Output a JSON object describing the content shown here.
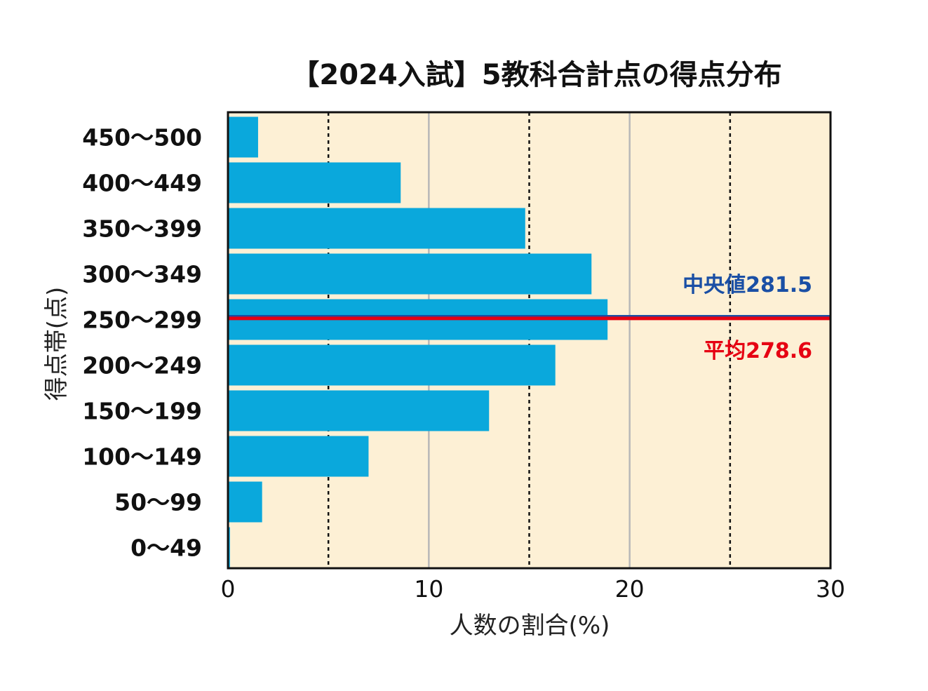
{
  "chart_data": {
    "type": "bar",
    "orientation": "horizontal",
    "title": "【2024入試】5教科合計点の得点分布",
    "xlabel": "人数の割合(%)",
    "ylabel": "得点帯(点)",
    "xlim": [
      0,
      30
    ],
    "xticks": [
      "0",
      "10",
      "20",
      "30"
    ],
    "grid": {
      "solid": [
        10,
        20
      ],
      "dotted": [
        5,
        15,
        25
      ]
    },
    "categories": [
      "450〜500",
      "400〜449",
      "350〜399",
      "300〜349",
      "250〜299",
      "200〜249",
      "150〜199",
      "100〜149",
      "50〜99",
      "0〜49"
    ],
    "values": [
      1.5,
      8.6,
      14.8,
      18.1,
      18.9,
      16.3,
      13.0,
      7.0,
      1.7,
      0.1
    ],
    "annotations": {
      "median": {
        "label": "中央値281.5",
        "value": 281.5,
        "color": "#1a4fa5"
      },
      "mean": {
        "label": "平均278.6",
        "value": 278.6,
        "color": "#e60012"
      }
    },
    "colors": {
      "bar": "#0aa8dc",
      "plot_bg": "#fdf0d5"
    }
  }
}
